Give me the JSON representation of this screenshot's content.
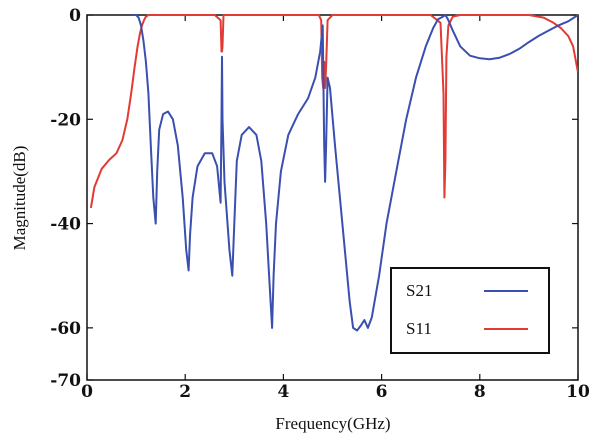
{
  "chart_data": {
    "type": "line",
    "title": "",
    "xlabel": "Frequency(GHz)",
    "ylabel": "Magnitude(dB)",
    "xlim": [
      0,
      10
    ],
    "ylim": [
      -70,
      0
    ],
    "x_ticks": [
      "0",
      "2",
      "4",
      "6",
      "8",
      "10"
    ],
    "y_ticks": [
      "0",
      "-20",
      "-40",
      "-60",
      "-70"
    ],
    "y_tick_values": [
      0,
      -20,
      -40,
      -60,
      -70
    ],
    "x_tick_values": [
      0,
      2,
      4,
      6,
      8,
      10
    ],
    "grid": false,
    "legend_position": "bottom-right",
    "series": [
      {
        "name": "S21",
        "color": "#3a4fb0",
        "x": [
          0.9,
          1.0,
          1.05,
          1.1,
          1.15,
          1.2,
          1.25,
          1.3,
          1.35,
          1.4,
          1.43,
          1.47,
          1.55,
          1.65,
          1.75,
          1.85,
          1.95,
          2.02,
          2.07,
          2.1,
          2.15,
          2.25,
          2.4,
          2.55,
          2.65,
          2.72,
          2.74,
          2.75,
          2.76,
          2.8,
          2.9,
          2.96,
          3.0,
          3.05,
          3.15,
          3.3,
          3.45,
          3.55,
          3.65,
          3.72,
          3.77,
          3.8,
          3.85,
          3.95,
          4.1,
          4.3,
          4.5,
          4.65,
          4.75,
          4.8,
          4.83,
          4.85,
          4.87,
          4.9,
          4.95,
          5.05,
          5.15,
          5.25,
          5.35,
          5.42,
          5.5,
          5.58,
          5.65,
          5.72,
          5.8,
          5.95,
          6.1,
          6.3,
          6.5,
          6.7,
          6.9,
          7.05,
          7.15,
          7.25,
          7.3,
          7.35,
          7.45,
          7.6,
          7.8,
          8.0,
          8.2,
          8.4,
          8.6,
          8.8,
          9.0,
          9.2,
          9.4,
          9.6,
          9.8,
          10.0
        ],
        "y": [
          0,
          0,
          -0.5,
          -2,
          -5,
          -9,
          -15,
          -25,
          -35,
          -40,
          -30,
          -22,
          -19,
          -18.5,
          -20,
          -25,
          -35,
          -45,
          -49,
          -42,
          -35,
          -29,
          -26.5,
          -26.5,
          -29,
          -36,
          -20,
          -8,
          -20,
          -32,
          -45,
          -50,
          -40,
          -28,
          -23,
          -21.5,
          -23,
          -28,
          -40,
          -52,
          -60,
          -50,
          -40,
          -30,
          -23,
          -19,
          -16,
          -12,
          -7,
          -2,
          -25,
          -32,
          -25,
          -12,
          -14,
          -25,
          -35,
          -45,
          -55,
          -60,
          -60.5,
          -59.5,
          -58.5,
          -60,
          -58,
          -50,
          -40,
          -30,
          -20,
          -12,
          -6,
          -2.5,
          -0.8,
          -0.3,
          0,
          -0.8,
          -3,
          -6,
          -7.8,
          -8.3,
          -8.5,
          -8.2,
          -7.5,
          -6.5,
          -5.2,
          -4,
          -3,
          -2,
          -1.2,
          0
        ]
      },
      {
        "name": "S11",
        "color": "#e23a34",
        "x": [
          0.08,
          0.15,
          0.3,
          0.45,
          0.6,
          0.72,
          0.82,
          0.9,
          0.97,
          1.03,
          1.08,
          1.12,
          1.16,
          1.2,
          1.25,
          1.3,
          1.4,
          2.0,
          2.6,
          2.72,
          2.74,
          2.75,
          2.76,
          2.78,
          3.0,
          3.5,
          4.0,
          4.5,
          4.72,
          4.77,
          4.79,
          4.81,
          4.83,
          4.85,
          4.87,
          4.9,
          5.0,
          5.5,
          6.0,
          6.5,
          7.0,
          7.2,
          7.26,
          7.28,
          7.3,
          7.32,
          7.36,
          7.45,
          7.6,
          7.8,
          8.5,
          9.0,
          9.3,
          9.5,
          9.65,
          9.8,
          9.9,
          10.0
        ],
        "y": [
          -37,
          -33,
          -29.5,
          -27.8,
          -26.5,
          -24,
          -20,
          -15,
          -10,
          -6,
          -3.5,
          -2,
          -1,
          -0.3,
          0,
          0,
          0,
          0,
          0,
          -1,
          -7,
          -7,
          -6,
          0,
          0,
          0,
          0,
          0,
          0,
          -1,
          -12,
          -14,
          -9,
          -14,
          -10,
          -1,
          0,
          0,
          0,
          0,
          0,
          -1.5,
          -15,
          -35,
          -28,
          -8,
          -2,
          -0.3,
          0,
          0,
          0,
          0,
          -0.5,
          -1.5,
          -2.5,
          -4,
          -6,
          -11
        ]
      }
    ]
  }
}
